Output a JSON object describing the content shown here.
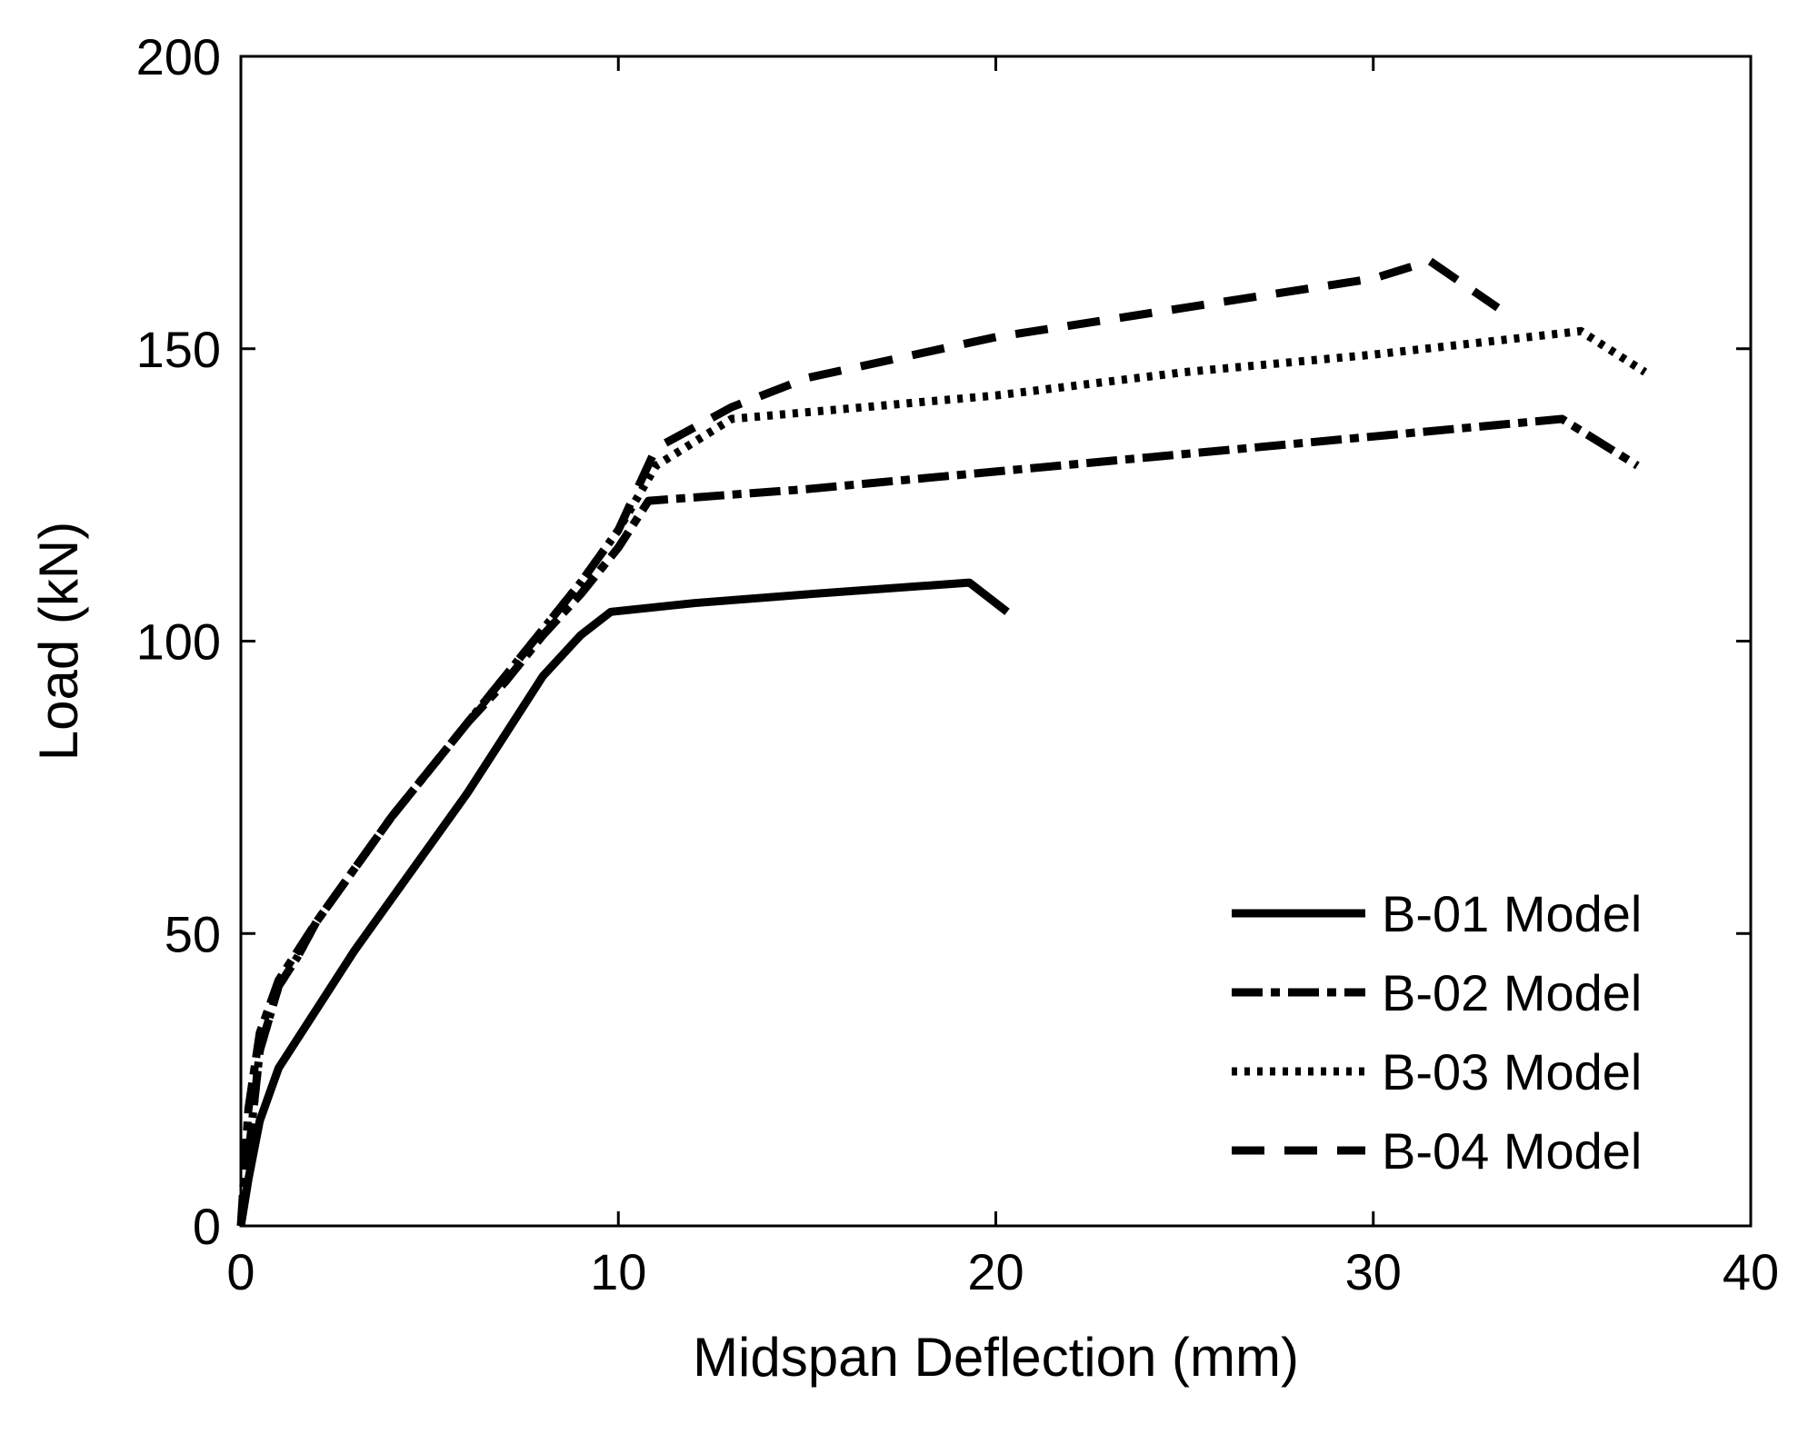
{
  "chart_data": {
    "type": "line",
    "title": "",
    "xlabel": "Midspan Deflection (mm)",
    "ylabel": "Load (kN)",
    "xlim": [
      0,
      40
    ],
    "ylim": [
      0,
      200
    ],
    "xticks": [
      "0",
      "10",
      "20",
      "30",
      "40"
    ],
    "yticks": [
      "0",
      "50",
      "100",
      "150",
      "200"
    ],
    "grid": false,
    "legend_position": "bottom-right",
    "colors": {
      "line": "#000000",
      "background": "#ffffff"
    },
    "series": [
      {
        "name": "B-01 Model",
        "style": "solid",
        "x": [
          0,
          0.2,
          0.5,
          1.0,
          1.5,
          2.0,
          3.0,
          4.0,
          5.0,
          6.0,
          7.0,
          8.0,
          9.0,
          9.8,
          12,
          15,
          19.3,
          20.3
        ],
        "y": [
          0,
          8,
          18,
          27,
          32,
          37,
          47,
          56,
          65,
          74,
          84,
          94,
          101,
          105,
          106.5,
          108,
          110,
          105
        ]
      },
      {
        "name": "B-02 Model",
        "style": "dashdot",
        "x": [
          0,
          0.2,
          0.5,
          1.0,
          1.5,
          2.0,
          3.0,
          4.0,
          5.0,
          6.0,
          7.0,
          8.0,
          9.0,
          10.0,
          10.8,
          15,
          20,
          25,
          30,
          35,
          37
        ],
        "y": [
          0,
          20,
          33,
          42,
          47,
          52,
          61,
          70,
          78,
          86,
          93,
          101,
          108,
          116,
          124,
          126,
          129,
          132,
          135,
          138,
          130
        ]
      },
      {
        "name": "B-03 Model",
        "style": "dotted",
        "x": [
          0.2,
          0.5,
          1.0,
          1.5,
          2.0,
          3.0,
          4.0,
          5.0,
          6.0,
          7.0,
          8.0,
          9.0,
          10.0,
          11.0,
          13.0,
          20,
          25,
          30,
          35.5,
          37.2
        ],
        "y": [
          12,
          30,
          41,
          46,
          52,
          61,
          70,
          78,
          86,
          94,
          102,
          110,
          119,
          130,
          138,
          142,
          146,
          149,
          153,
          146
        ]
      },
      {
        "name": "B-04 Model",
        "style": "dashed",
        "x": [
          0.2,
          0.5,
          1.0,
          1.5,
          2.0,
          3.0,
          4.0,
          5.0,
          6.0,
          7.0,
          8.0,
          9.0,
          10.0,
          11.0,
          13.0,
          15,
          20,
          25,
          30,
          31.5,
          33.3
        ],
        "y": [
          12,
          30,
          41,
          46,
          52,
          61,
          70,
          78,
          86,
          94,
          102,
          110,
          119,
          133,
          140,
          145,
          152,
          157,
          162,
          165,
          157
        ]
      }
    ]
  }
}
